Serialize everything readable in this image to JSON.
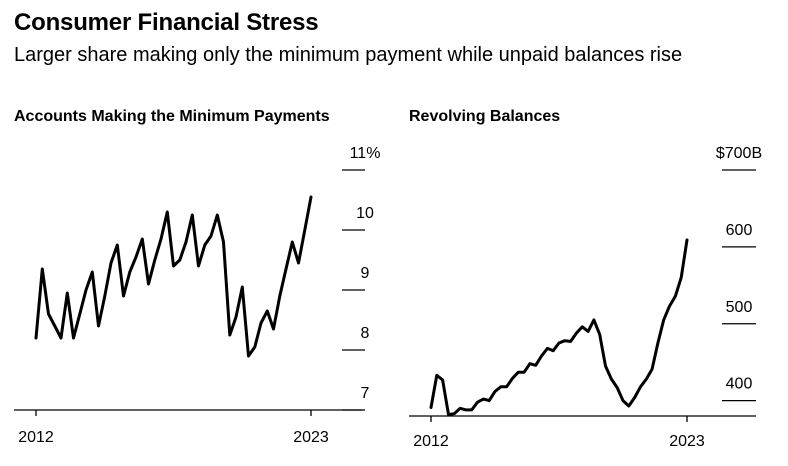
{
  "title": "Consumer Financial Stress",
  "subtitle": "Larger share making only the minimum payment while unpaid balances rise",
  "chart_data": [
    {
      "type": "line",
      "title": "Accounts Making the Minimum Payments",
      "x_start_label": "2012",
      "x_end_label": "2023",
      "ylim": [
        7,
        11
      ],
      "y_ticks": [
        {
          "value": 11,
          "label": "11%"
        },
        {
          "value": 10,
          "label": "10"
        },
        {
          "value": 9,
          "label": "9"
        },
        {
          "value": 8,
          "label": "8"
        },
        {
          "value": 7,
          "label": "7"
        }
      ],
      "grid": false,
      "x": [
        2012.0,
        2012.25,
        2012.5,
        2012.75,
        2013.0,
        2013.25,
        2013.5,
        2013.75,
        2014.0,
        2014.25,
        2014.5,
        2014.75,
        2015.0,
        2015.25,
        2015.5,
        2015.75,
        2016.0,
        2016.25,
        2016.5,
        2016.75,
        2017.0,
        2017.25,
        2017.5,
        2017.75,
        2018.0,
        2018.25,
        2018.5,
        2018.75,
        2019.0,
        2019.25,
        2019.5,
        2019.75,
        2020.0,
        2020.25,
        2020.5,
        2020.75,
        2021.0,
        2021.25,
        2021.5,
        2021.75,
        2022.0,
        2022.25,
        2022.5,
        2022.75,
        2023.0
      ],
      "series": [
        {
          "values": [
            8.2,
            9.35,
            8.6,
            8.4,
            8.2,
            8.95,
            8.2,
            8.6,
            9.0,
            9.3,
            8.4,
            8.9,
            9.45,
            9.75,
            8.9,
            9.3,
            9.55,
            9.85,
            9.1,
            9.5,
            9.85,
            10.3,
            9.4,
            9.5,
            9.8,
            10.25,
            9.4,
            9.75,
            9.9,
            10.25,
            9.8,
            8.25,
            8.55,
            9.05,
            7.9,
            8.05,
            8.45,
            8.65,
            8.35,
            8.9,
            9.35,
            9.8,
            9.45,
            10.0,
            10.55
          ]
        }
      ]
    },
    {
      "type": "line",
      "title": "Revolving Balances",
      "x_start_label": "2012",
      "x_end_label": "2023",
      "ylim": [
        380,
        700
      ],
      "y_ticks": [
        {
          "value": 700,
          "label": "$700B"
        },
        {
          "value": 600,
          "label": "600"
        },
        {
          "value": 500,
          "label": "500"
        },
        {
          "value": 400,
          "label": "400"
        }
      ],
      "grid": false,
      "x": [
        2012.0,
        2012.25,
        2012.5,
        2012.75,
        2013.0,
        2013.25,
        2013.5,
        2013.75,
        2014.0,
        2014.25,
        2014.5,
        2014.75,
        2015.0,
        2015.25,
        2015.5,
        2015.75,
        2016.0,
        2016.25,
        2016.5,
        2016.75,
        2017.0,
        2017.25,
        2017.5,
        2017.75,
        2018.0,
        2018.25,
        2018.5,
        2018.75,
        2019.0,
        2019.25,
        2019.5,
        2019.75,
        2020.0,
        2020.25,
        2020.5,
        2020.75,
        2021.0,
        2021.25,
        2021.5,
        2021.75,
        2022.0,
        2022.25,
        2022.5,
        2022.75,
        2023.0
      ],
      "series": [
        {
          "values": [
            391,
            433,
            427,
            382,
            383,
            390,
            388,
            388,
            398,
            402,
            400,
            412,
            418,
            418,
            429,
            437,
            437,
            448,
            446,
            458,
            468,
            465,
            475,
            478,
            477,
            488,
            496,
            490,
            505,
            486,
            445,
            428,
            417,
            400,
            393,
            404,
            418,
            428,
            441,
            475,
            505,
            523,
            536,
            560,
            609
          ]
        }
      ]
    }
  ]
}
